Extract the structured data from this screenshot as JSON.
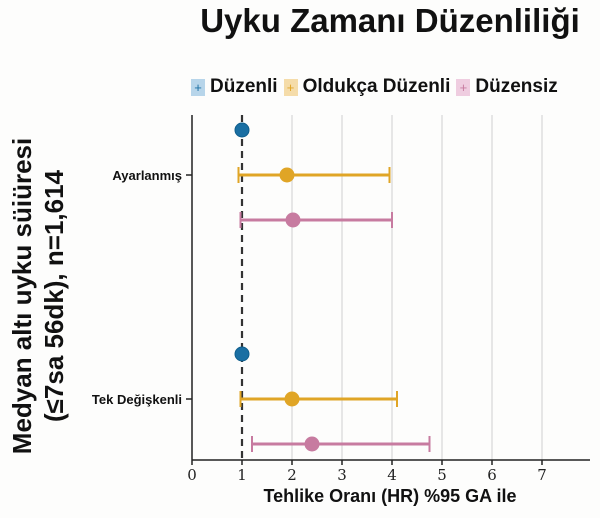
{
  "chart_data": {
    "type": "forest",
    "title": "Uyku Zamanı Düzenliliği",
    "xlabel": "Tehlike Oranı (HR) %95 GA ile",
    "ylabel": [
      "Medyan altı uyku süiüresi",
      "(≤7sa 56dk), n=1,614"
    ],
    "xlim": [
      0,
      8
    ],
    "x_ticks": [
      "0",
      "1",
      "2",
      "3",
      "4",
      "5",
      "6",
      "7"
    ],
    "reference_line": 1,
    "grid": "vertical",
    "legend_position": "top",
    "categories": [
      "Ayarlanmış",
      "Tek Değişkenli"
    ],
    "series": [
      {
        "name": "Düzenli",
        "color": "#1a6fa3",
        "legend_color": "#b7d5ea",
        "values": [
          {
            "hr": 1.0,
            "low": 1.0,
            "high": 1.0
          },
          {
            "hr": 1.0,
            "low": 1.0,
            "high": 1.0
          }
        ]
      },
      {
        "name": "Oldukça Düzenli",
        "color": "#e0a526",
        "legend_color": "#f5dca9",
        "values": [
          {
            "hr": 1.9,
            "low": 0.93,
            "high": 3.95
          },
          {
            "hr": 2.0,
            "low": 0.97,
            "high": 4.1
          }
        ]
      },
      {
        "name": "Düzensiz",
        "color": "#c77ba0",
        "legend_color": "#efcde0",
        "values": [
          {
            "hr": 2.02,
            "low": 0.97,
            "high": 4.0
          },
          {
            "hr": 2.4,
            "low": 1.2,
            "high": 4.75
          }
        ]
      }
    ]
  },
  "legend": {
    "items": [
      {
        "label": "Düzenli",
        "symbol": "+"
      },
      {
        "label": "Oldukça Düzenli",
        "symbol": "+"
      },
      {
        "label": "Düzensiz",
        "symbol": "+"
      }
    ]
  }
}
